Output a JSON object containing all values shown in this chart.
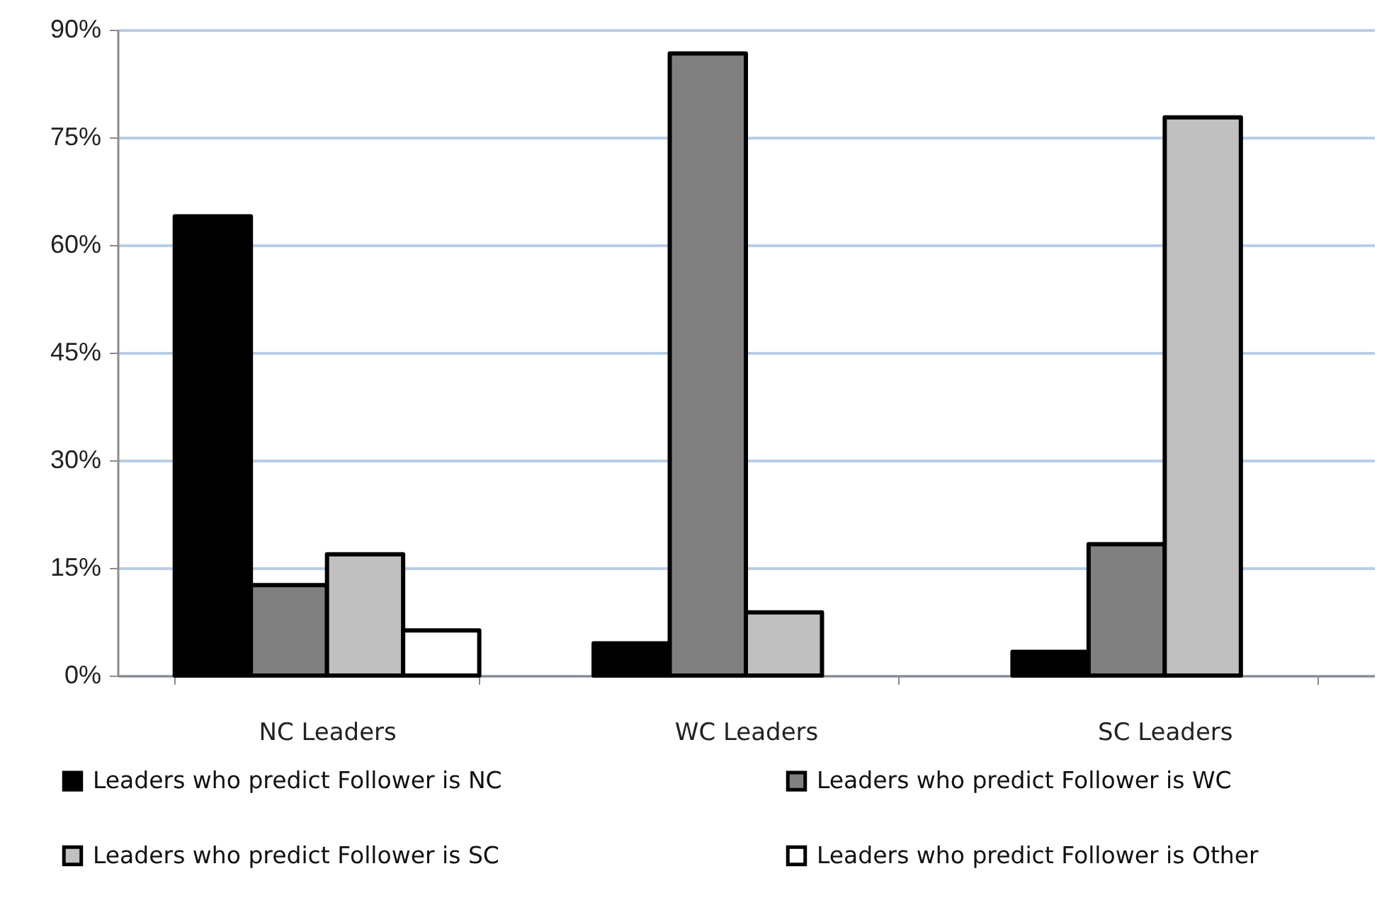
{
  "chart_data": {
    "type": "bar",
    "categories": [
      "NC Leaders",
      "WC Leaders",
      "SC Leaders"
    ],
    "series": [
      {
        "name": "Leaders who predict Follower is NC",
        "color": "#000000",
        "values": [
          64,
          4.5,
          3.3
        ]
      },
      {
        "name": "Leaders who predict Follower is WC",
        "color": "#808080",
        "values": [
          12.6,
          86.7,
          18.3
        ]
      },
      {
        "name": "Leaders who predict Follower is SC",
        "color": "#c0c0c0",
        "values": [
          16.9,
          8.8,
          77.8
        ]
      },
      {
        "name": "Leaders who predict Follower is Other",
        "color": "#ffffff",
        "values": [
          6.3,
          null,
          null
        ]
      }
    ],
    "ylim": [
      0,
      90
    ],
    "yticks": [
      {
        "value": 0,
        "label": "0%"
      },
      {
        "value": 15,
        "label": "15%"
      },
      {
        "value": 30,
        "label": "30%"
      },
      {
        "value": 45,
        "label": "45%"
      },
      {
        "value": 60,
        "label": "60%"
      },
      {
        "value": 75,
        "label": "75%"
      },
      {
        "value": 90,
        "label": "90%"
      }
    ],
    "grid": "y",
    "legend": "bottom"
  }
}
